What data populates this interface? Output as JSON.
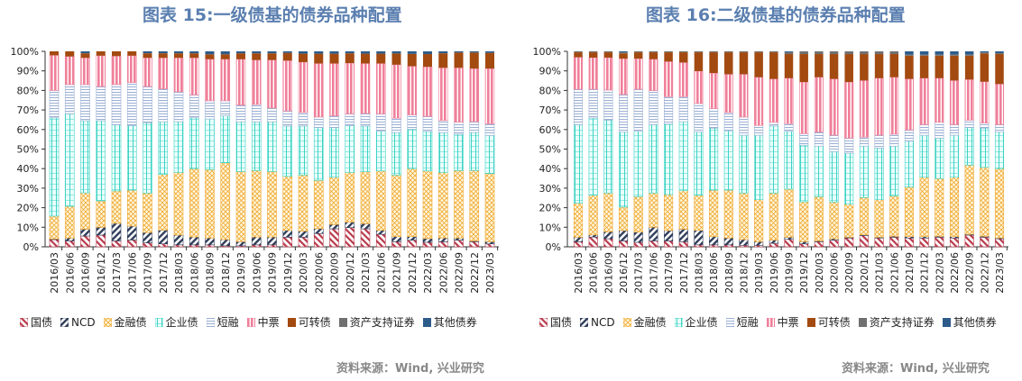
{
  "series_names": [
    "国债",
    "NCD",
    "金融债",
    "企业债",
    "短融",
    "中票",
    "可转债",
    "资产支持证券",
    "其他债券"
  ],
  "series_colors": [
    "#b83a4b",
    "#2f3d5a",
    "#f0a830",
    "#3fd2c4",
    "#9bb0d4",
    "#f0809a",
    "#a34a10",
    "#707070",
    "#2e5c8a"
  ],
  "title_color": "#5b7fb0",
  "chart_data": [
    {
      "type": "bar",
      "stacked": "percent",
      "title": "图表 15:一级债基的债券品种配置",
      "source": "资料来源：Wind, 兴业研究",
      "ylim": [
        0,
        100
      ],
      "yticks": [
        "0%",
        "10%",
        "20%",
        "30%",
        "40%",
        "50%",
        "60%",
        "70%",
        "80%",
        "90%",
        "100%"
      ],
      "grid": false,
      "legend": "bottom",
      "categories": [
        "2016/03",
        "2016/06",
        "2016/09",
        "2016/12",
        "2017/03",
        "2017/06",
        "2017/09",
        "2017/12",
        "2018/03",
        "2018/06",
        "2018/09",
        "2018/12",
        "2019/03",
        "2019/06",
        "2019/09",
        "2019/12",
        "2020/03",
        "2020/06",
        "2020/09",
        "2020/12",
        "2021/03",
        "2021/06",
        "2021/09",
        "2021/12",
        "2022/03",
        "2022/06",
        "2022/09",
        "2022/12",
        "2023/03"
      ],
      "series": [
        {
          "name": "国债",
          "values": [
            3.7,
            3,
            5.5,
            6,
            3,
            3.5,
            2,
            1.5,
            1,
            1,
            1,
            0.5,
            0.5,
            1,
            1,
            4.9,
            4.9,
            6.8,
            9.2,
            9.8,
            9.2,
            6.4,
            2.6,
            3.4,
            2.3,
            2.6,
            3.4,
            2.6,
            1.5
          ]
        },
        {
          "name": "NCD",
          "values": [
            0.3,
            1.5,
            3.5,
            4,
            9,
            7.1,
            5.3,
            7,
            5,
            4,
            3.5,
            3.2,
            2.1,
            4,
            4,
            3.5,
            3.1,
            2.5,
            2.2,
            2.8,
            2.6,
            2,
            2.6,
            1.8,
            1.9,
            1.9,
            1.1,
            0.4,
            1.1
          ]
        },
        {
          "name": "金融债",
          "values": [
            11.7,
            16.2,
            18.6,
            13.5,
            16.6,
            18.4,
            20.2,
            28.5,
            32,
            35,
            35,
            39.3,
            35.9,
            34,
            33.5,
            27.6,
            28.7,
            24.7,
            24.2,
            25.4,
            26.6,
            30.4,
            31.5,
            34.8,
            34.6,
            33.5,
            34.5,
            36,
            34.9
          ]
        },
        {
          "name": "企业债",
          "values": [
            50.3,
            47.3,
            36.9,
            41,
            33.8,
            33,
            36,
            27,
            26,
            26,
            25.9,
            24,
            25.5,
            25,
            25.5,
            25.8,
            25.1,
            27,
            25.4,
            24,
            23.4,
            20.4,
            21.8,
            20.2,
            20.2,
            20.4,
            18.6,
            19.5,
            19.5
          ]
        },
        {
          "name": "短融",
          "values": [
            14,
            15,
            18.5,
            17.5,
            20.6,
            22,
            18.5,
            16.8,
            15.3,
            11.7,
            9.3,
            7.7,
            8.5,
            8.8,
            7,
            7.7,
            6.9,
            5.4,
            6,
            6,
            6.4,
            8.8,
            7.3,
            7.3,
            7.7,
            6.2,
            6.2,
            5.5,
            5.9
          ]
        },
        {
          "name": "中票",
          "values": [
            18,
            14.4,
            13.7,
            15.8,
            14.6,
            13.8,
            14.7,
            15.9,
            17.4,
            19,
            21.3,
            21.3,
            23.5,
            22.8,
            24.6,
            25.8,
            25.8,
            27.4,
            26.8,
            26,
            25.6,
            25.8,
            27.4,
            24.9,
            25.4,
            27,
            27.8,
            27.2,
            28.3
          ]
        },
        {
          "name": "可转债",
          "values": [
            2,
            2.6,
            2.3,
            2.2,
            2.4,
            2.2,
            2.3,
            2.3,
            2.3,
            2.3,
            2.5,
            2.5,
            3,
            3.4,
            3.4,
            3.9,
            4.3,
            5,
            5,
            5,
            5,
            5,
            5.7,
            6.3,
            6.5,
            7.4,
            7.8,
            8.2,
            8
          ]
        },
        {
          "name": "资产支持证券",
          "values": [
            0,
            0,
            0,
            0,
            0,
            0,
            0,
            0,
            0,
            0,
            0,
            0,
            0,
            0,
            0,
            0,
            0,
            0,
            0,
            0,
            0,
            0,
            0,
            0,
            0,
            0,
            0,
            0,
            0
          ]
        },
        {
          "name": "其他债券",
          "values": [
            0,
            0,
            1,
            0,
            0,
            0,
            1,
            1,
            1,
            1,
            1.5,
            1.5,
            1,
            1,
            1,
            0.8,
            1.2,
            1.2,
            1.2,
            1,
            1.2,
            1.2,
            1.1,
            1.3,
            1.4,
            1,
            0.6,
            0.6,
            0.8
          ]
        }
      ]
    },
    {
      "type": "bar",
      "stacked": "percent",
      "title": "图表 16:二级债基的债券品种配置",
      "source": "资料来源：Wind, 兴业研究",
      "ylim": [
        0,
        100
      ],
      "yticks": [
        "0%",
        "10%",
        "20%",
        "30%",
        "40%",
        "50%",
        "60%",
        "70%",
        "80%",
        "90%",
        "100%"
      ],
      "grid": false,
      "legend": "bottom",
      "categories": [
        "2016/03",
        "2016/06",
        "2016/09",
        "2016/12",
        "2017/03",
        "2017/06",
        "2017/09",
        "2017/12",
        "2018/03",
        "2018/06",
        "2018/09",
        "2018/12",
        "2019/03",
        "2019/06",
        "2019/09",
        "2019/12",
        "2020/03",
        "2020/06",
        "2020/09",
        "2020/12",
        "2021/03",
        "2021/06",
        "2021/09",
        "2021/12",
        "2022/03",
        "2022/06",
        "2022/09",
        "2022/12",
        "2023/03"
      ],
      "series": [
        {
          "name": "国债",
          "values": [
            2.6,
            5,
            4.1,
            3,
            2.3,
            3,
            3,
            2.6,
            1,
            1,
            1,
            0.8,
            0.8,
            1.8,
            3.8,
            1.5,
            2.6,
            3.4,
            4.5,
            5.7,
            4.5,
            4.9,
            4.5,
            4.5,
            4.9,
            4.5,
            6,
            4.9,
            4.1
          ]
        },
        {
          "name": "NCD",
          "values": [
            2.3,
            1.1,
            3.6,
            5.3,
            5.2,
            7,
            5.3,
            6.4,
            7.4,
            4.2,
            3.5,
            2.9,
            1.8,
            1.6,
            1.1,
            1.1,
            0.4,
            0.7,
            0.4,
            0.4,
            0.4,
            0.5,
            0.7,
            0.7,
            0.5,
            0.7,
            0.4,
            0.5,
            0.4
          ]
        },
        {
          "name": "金融债",
          "values": [
            17.4,
            20.3,
            19.8,
            12,
            18.2,
            17.5,
            18.4,
            19.7,
            18,
            23.8,
            24.5,
            23.8,
            21.5,
            24.1,
            24.6,
            20.4,
            22.6,
            18.8,
            16.9,
            19.1,
            19.2,
            20.6,
            25.4,
            30.4,
            29.5,
            30.4,
            35.4,
            35.2,
            35.5
          ]
        },
        {
          "name": "企业债",
          "values": [
            40.2,
            39.5,
            37.3,
            38.4,
            33.4,
            35,
            36.1,
            35.3,
            32.3,
            31.7,
            30.4,
            29.6,
            33,
            34.3,
            29.6,
            29,
            25.9,
            25.8,
            26.1,
            26.3,
            26.4,
            25.5,
            23.5,
            21.5,
            20.7,
            21.5,
            19.2,
            20.1,
            18.7
          ]
        },
        {
          "name": "短融",
          "values": [
            18.1,
            14.7,
            15.4,
            19.2,
            21.5,
            17.4,
            14,
            12.8,
            14.6,
            10,
            9.3,
            9.3,
            5,
            1.9,
            3.9,
            5.9,
            7.2,
            8.4,
            7.7,
            4.6,
            6.6,
            6.1,
            5.7,
            5.4,
            8.1,
            5.4,
            3.8,
            2.6,
            3.8
          ]
        },
        {
          "name": "中票",
          "values": [
            16.4,
            16.2,
            16.6,
            18.4,
            15.7,
            16.1,
            18,
            17.5,
            16.6,
            18.2,
            19.6,
            21.9,
            24.7,
            22.2,
            23.3,
            26.4,
            28.1,
            28.8,
            28.7,
            29,
            29.2,
            29.2,
            26.1,
            23.8,
            22.6,
            22.6,
            20.8,
            21.2,
            20.8
          ]
        },
        {
          "name": "可转债",
          "values": [
            2.5,
            2.7,
            2.7,
            2.7,
            3.2,
            3.5,
            4.7,
            5.2,
            9.6,
            10.6,
            11.2,
            11.2,
            12.7,
            13.6,
            12.3,
            14.3,
            11.8,
            12.7,
            14.3,
            13.5,
            12.3,
            11.8,
            11.9,
            11.5,
            11.5,
            12.7,
            12.2,
            14.4,
            15.3
          ]
        },
        {
          "name": "资产支持证券",
          "values": [
            0.5,
            0.5,
            0.5,
            0.5,
            0.5,
            0.5,
            0.5,
            0.5,
            0.5,
            0.5,
            0.5,
            0.5,
            0.5,
            0.5,
            1,
            1.4,
            1.4,
            1.4,
            1.4,
            1.4,
            1.4,
            1.4,
            0.5,
            0.5,
            0.5,
            0.5,
            0.5,
            0.5,
            0.5
          ]
        },
        {
          "name": "其他债券",
          "values": [
            0,
            0,
            0,
            0.5,
            0,
            0,
            0,
            0,
            0,
            0,
            0,
            0,
            0,
            0,
            0.4,
            0,
            0,
            0,
            0,
            0,
            0,
            0,
            1.7,
            1.7,
            1.7,
            1.7,
            1.7,
            0.6,
            0.9
          ]
        }
      ]
    }
  ]
}
